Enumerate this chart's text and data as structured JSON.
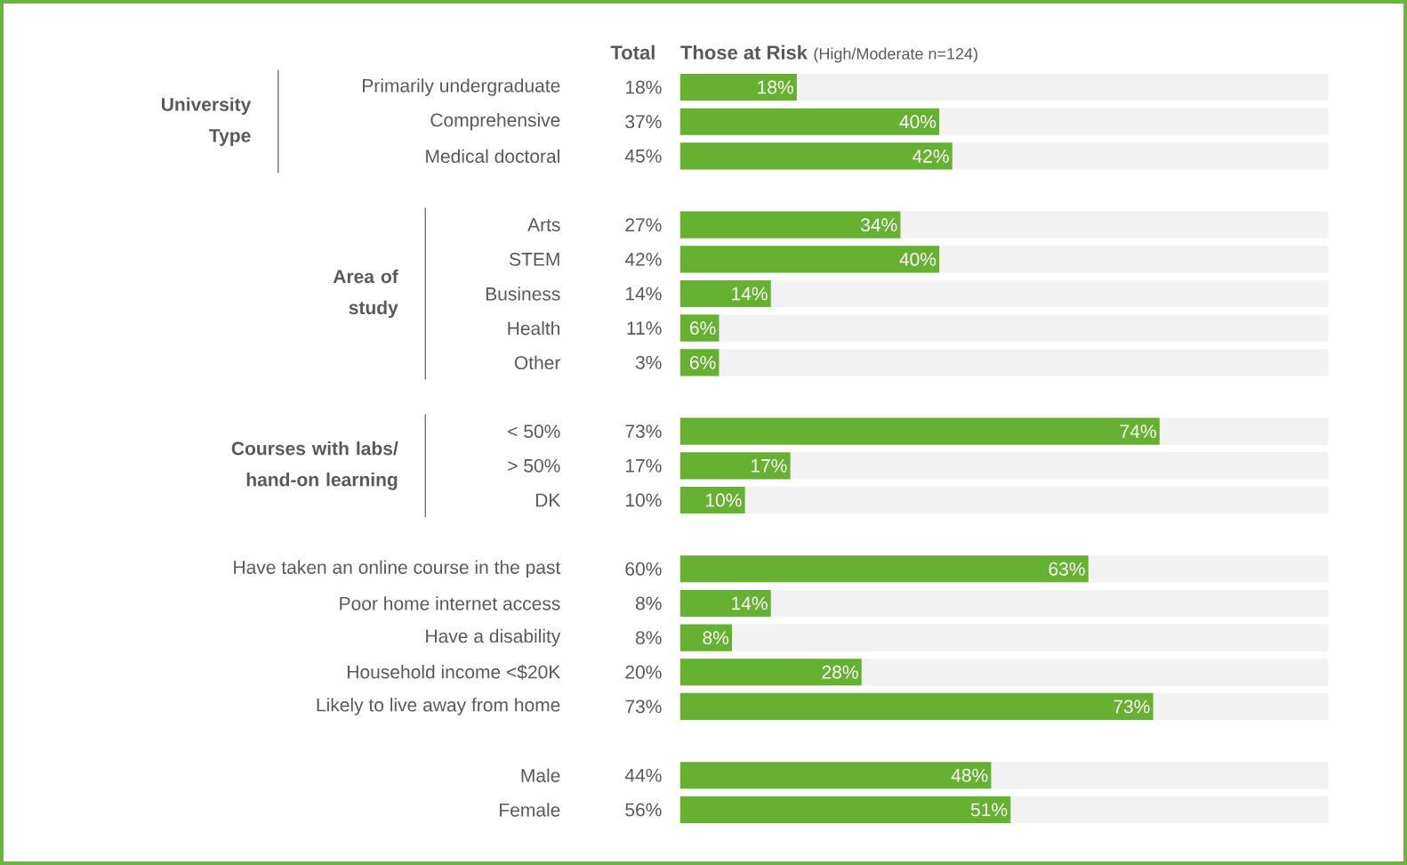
{
  "chart_data": {
    "type": "bar",
    "orientation": "horizontal",
    "title": "Those at Risk",
    "subtitle": "(High/Moderate n=124)",
    "categories": [
      "Primarily undergraduate",
      "Comprehensive",
      "Medical doctoral",
      null,
      "Arts",
      "STEM",
      "Business",
      "Health",
      "Other",
      null,
      "< 50%",
      "> 50%",
      "DK",
      null,
      "Have taken an online course in the past",
      "Poor home internet access",
      "Have a disability",
      "Household income <$20K",
      "Likely to live away from home",
      null,
      "Male",
      "Female"
    ],
    "values": [
      18,
      40,
      42,
      null,
      34,
      40,
      14,
      6,
      6,
      null,
      74,
      17,
      10,
      null,
      63,
      14,
      8,
      28,
      73,
      null,
      48,
      51
    ],
    "value_labels": [
      "18%",
      "40%",
      "42%",
      null,
      "34%",
      "40%",
      "14%",
      "6%",
      "6%",
      null,
      "74%",
      "17%",
      "10%",
      null,
      "63%",
      "14%",
      "8%",
      "28%",
      "73%",
      null,
      "48%",
      "51%"
    ],
    "color": "#66b032",
    "xlim": [
      0,
      100
    ],
    "tick_labels": "y",
    "annotations": [
      "Total",
      "18%",
      "37%",
      "45%",
      "27%",
      "42%",
      "14%",
      "11%",
      "3%",
      "73%",
      "17%",
      "10%",
      "60%",
      "8%",
      "8%",
      "20%",
      "73%",
      "44%",
      "56%",
      "University Type",
      "Area of study",
      "Courses with labs/ hand-on learning"
    ]
  }
}
